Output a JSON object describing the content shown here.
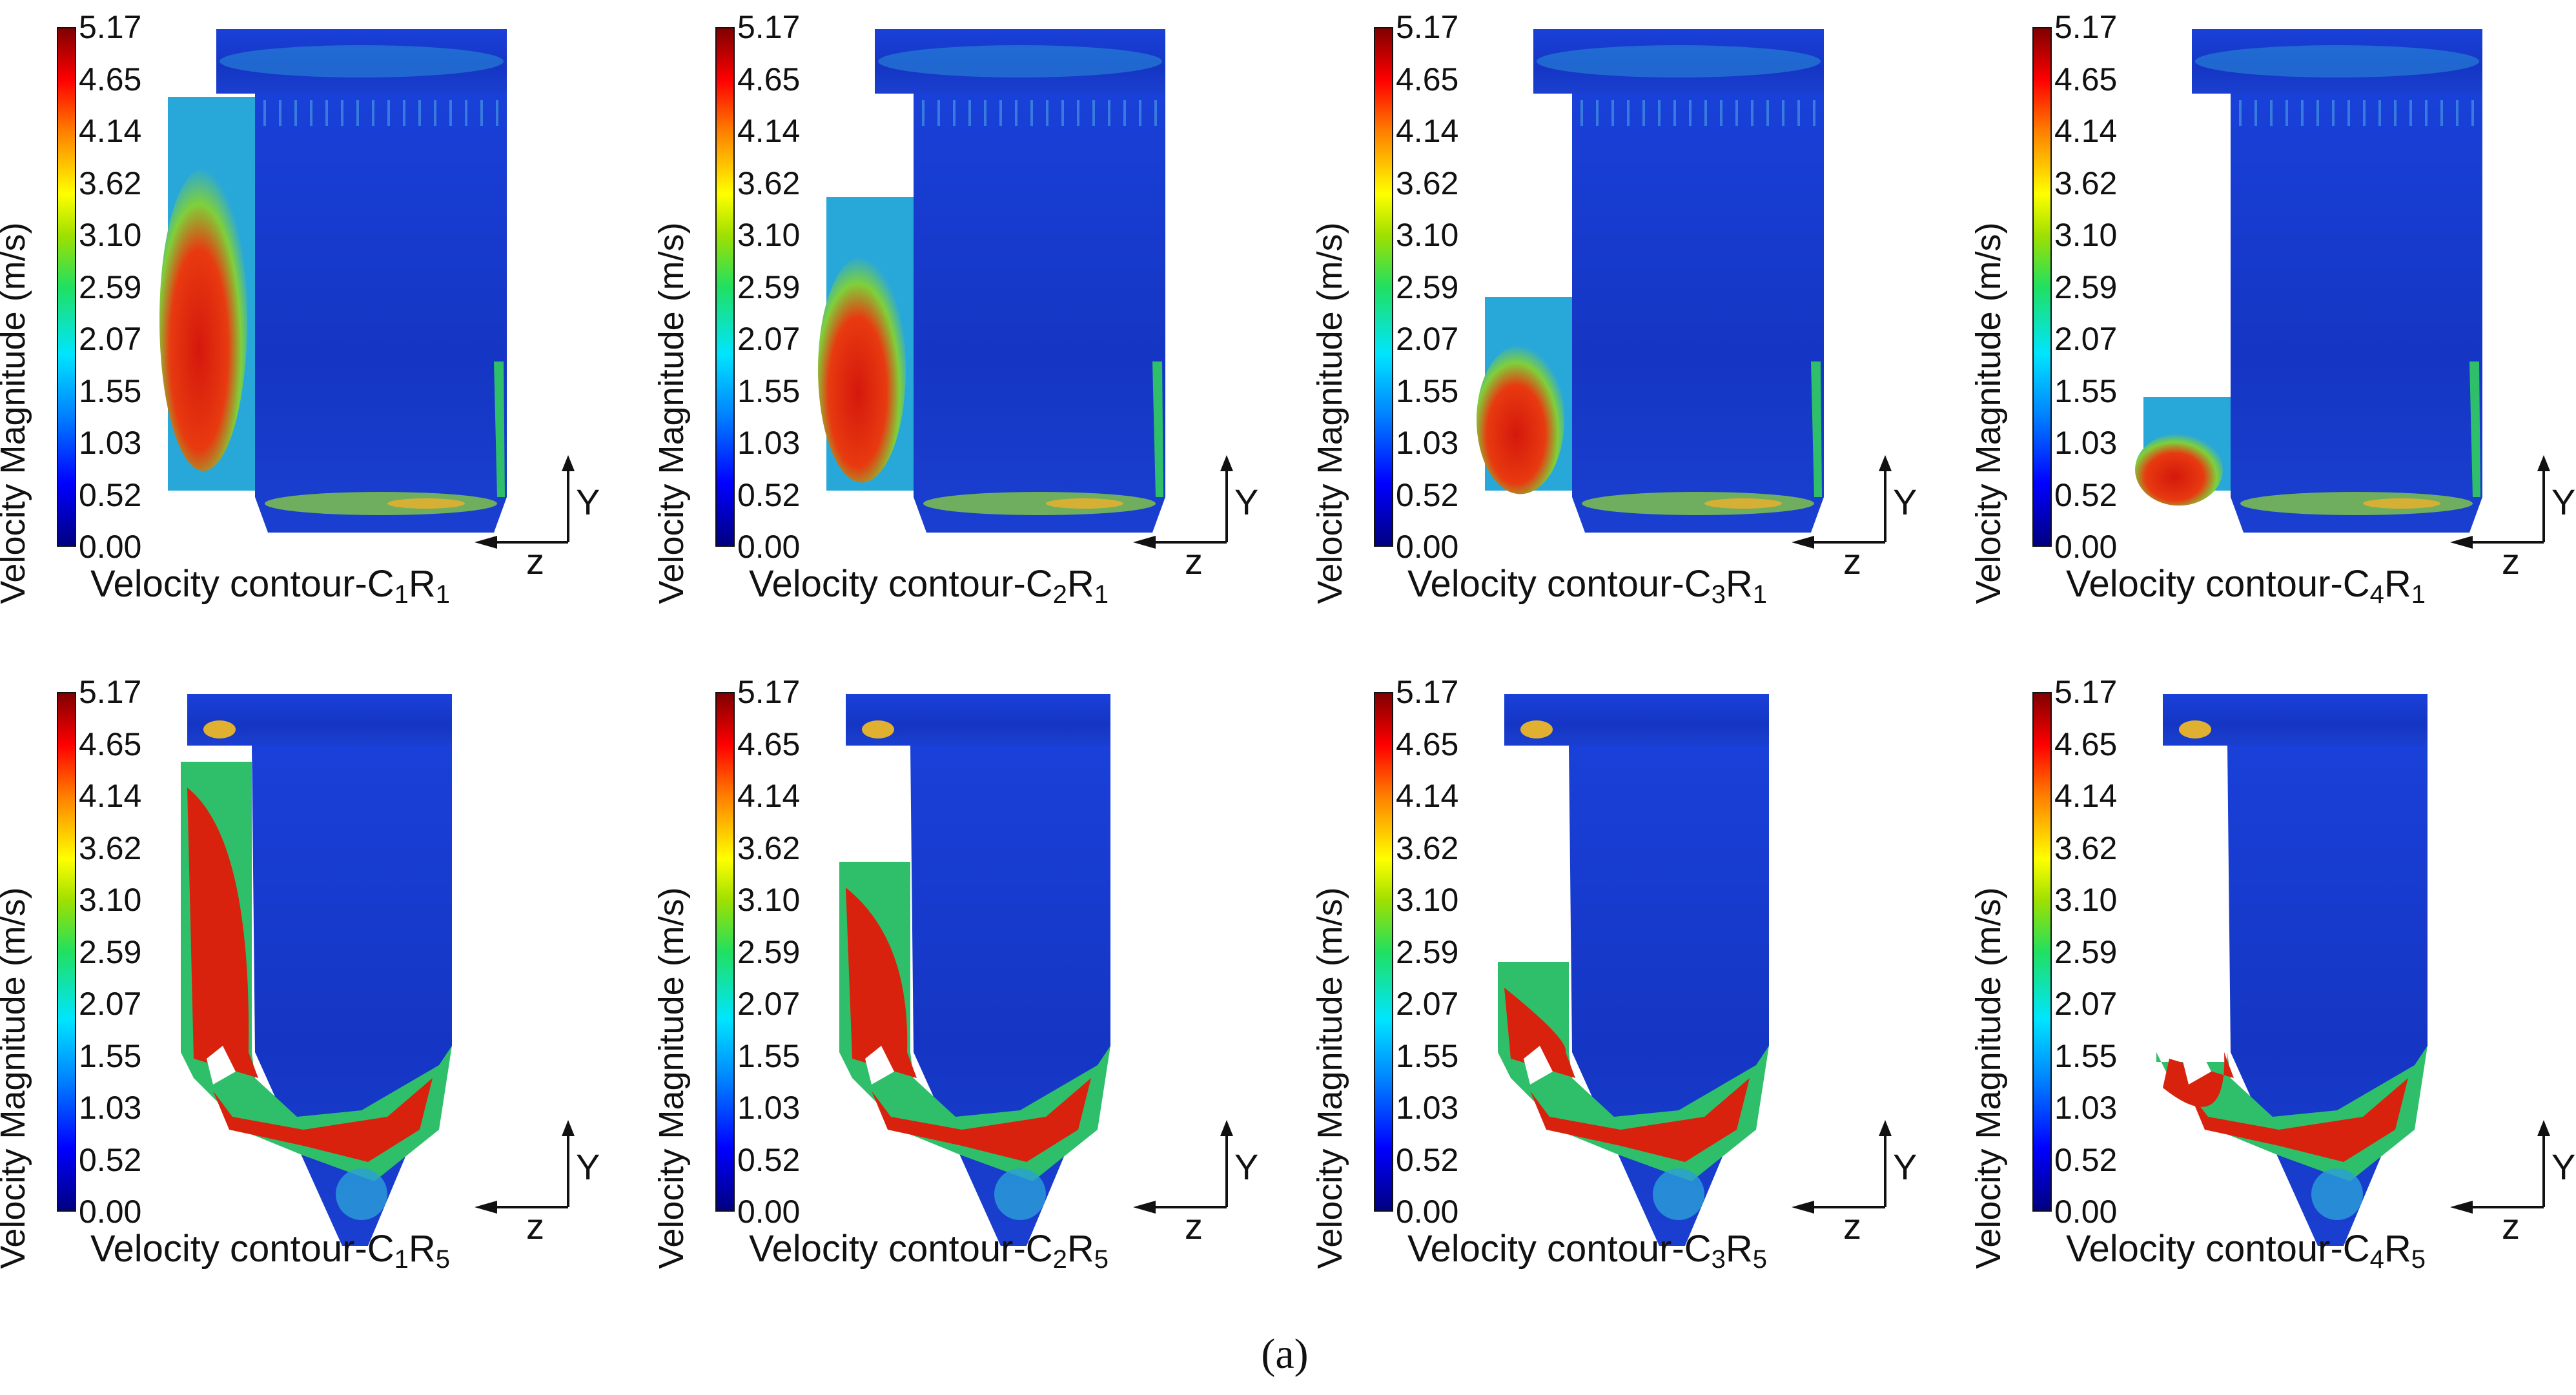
{
  "figure_label": "(a)",
  "colorbar": {
    "title": "Velocity Magnitude (m/s)",
    "ticks": [
      "5.17",
      "4.65",
      "4.14",
      "3.62",
      "3.10",
      "2.59",
      "2.07",
      "1.55",
      "1.03",
      "0.52",
      "0.00"
    ]
  },
  "axes": {
    "vertical": "Y",
    "horizontal": "z"
  },
  "panels": [
    {
      "prefix": "Velocity contour-C",
      "c": "1",
      "r_sep": "R",
      "r": "1"
    },
    {
      "prefix": "Velocity contour-C",
      "c": "2",
      "r_sep": "R",
      "r": "1"
    },
    {
      "prefix": "Velocity contour-C",
      "c": "3",
      "r_sep": "R",
      "r": "1"
    },
    {
      "prefix": "Velocity contour-C",
      "c": "4",
      "r_sep": "R",
      "r": "1"
    },
    {
      "prefix": "Velocity contour-C",
      "c": "1",
      "r_sep": "R",
      "r": "5"
    },
    {
      "prefix": "Velocity contour-C",
      "c": "2",
      "r_sep": "R",
      "r": "5"
    },
    {
      "prefix": "Velocity contour-C",
      "c": "3",
      "r_sep": "R",
      "r": "5"
    },
    {
      "prefix": "Velocity contour-C",
      "c": "4",
      "r_sep": "R",
      "r": "5"
    }
  ],
  "colors": {
    "low": "#1a2fb8",
    "mid": "#22c46a",
    "high": "#e01f10"
  }
}
